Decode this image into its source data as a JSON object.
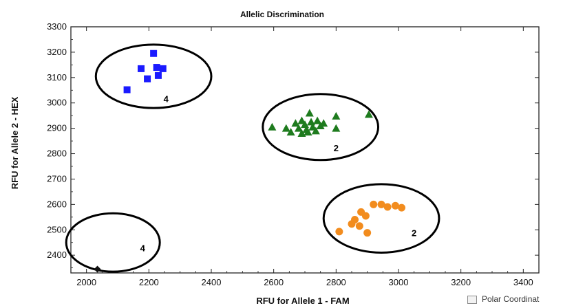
{
  "chart_data": {
    "type": "scatter",
    "title": "Allelic Discrimination",
    "xlabel": "RFU for Allele 1 - FAM",
    "ylabel": "RFU for Allele 2 - HEX",
    "xlim": [
      1950,
      3450
    ],
    "ylim": [
      2330,
      3300
    ],
    "xticks": [
      2000,
      2200,
      2400,
      2600,
      2800,
      3000,
      3200,
      3400
    ],
    "yticks": [
      2400,
      2500,
      2600,
      2700,
      2800,
      2900,
      3000,
      3100,
      3200,
      3300
    ],
    "grid": false,
    "series": [
      {
        "color": "#1a1aff",
        "marker": "square",
        "points": [
          [
            2215,
            3195
          ],
          [
            2175,
            3135
          ],
          [
            2225,
            3140
          ],
          [
            2245,
            3135
          ],
          [
            2195,
            3095
          ],
          [
            2230,
            3108
          ],
          [
            2130,
            3052
          ]
        ]
      },
      {
        "color": "#1e7b1e",
        "marker": "triangle",
        "points": [
          [
            2595,
            2905
          ],
          [
            2640,
            2900
          ],
          [
            2655,
            2885
          ],
          [
            2670,
            2920
          ],
          [
            2680,
            2900
          ],
          [
            2690,
            2930
          ],
          [
            2700,
            2915
          ],
          [
            2705,
            2895
          ],
          [
            2715,
            2960
          ],
          [
            2720,
            2925
          ],
          [
            2725,
            2905
          ],
          [
            2735,
            2890
          ],
          [
            2740,
            2930
          ],
          [
            2750,
            2910
          ],
          [
            2760,
            2920
          ],
          [
            2800,
            2948
          ],
          [
            2800,
            2900
          ],
          [
            2905,
            2955
          ],
          [
            2690,
            2880
          ],
          [
            2710,
            2885
          ]
        ]
      },
      {
        "color": "#f28c1e",
        "marker": "circle",
        "points": [
          [
            2810,
            2493
          ],
          [
            2850,
            2523
          ],
          [
            2860,
            2540
          ],
          [
            2875,
            2515
          ],
          [
            2880,
            2570
          ],
          [
            2895,
            2555
          ],
          [
            2900,
            2488
          ],
          [
            2920,
            2600
          ],
          [
            2945,
            2600
          ],
          [
            2965,
            2590
          ],
          [
            2990,
            2595
          ],
          [
            3010,
            2587
          ]
        ]
      },
      {
        "color": "#111111",
        "marker": "diamond",
        "points": [
          [
            2035,
            2345
          ]
        ]
      }
    ],
    "clusters": [
      {
        "cx": 2215,
        "cy": 3105,
        "rx": 185,
        "ry": 125
      },
      {
        "cx": 2750,
        "cy": 2905,
        "rx": 185,
        "ry": 130
      },
      {
        "cx": 2945,
        "cy": 2545,
        "rx": 185,
        "ry": 135
      },
      {
        "cx": 2085,
        "cy": 2450,
        "rx": 150,
        "ry": 115
      }
    ],
    "cluster_marks": [
      {
        "x": 2255,
        "y": 3003,
        "label": "4"
      },
      {
        "x": 2800,
        "y": 2810,
        "label": "2"
      },
      {
        "x": 3050,
        "y": 2475,
        "label": "2"
      },
      {
        "x": 2180,
        "y": 2415,
        "label": "4"
      }
    ]
  },
  "legend": {
    "polar_label": "Polar Coordinat"
  }
}
